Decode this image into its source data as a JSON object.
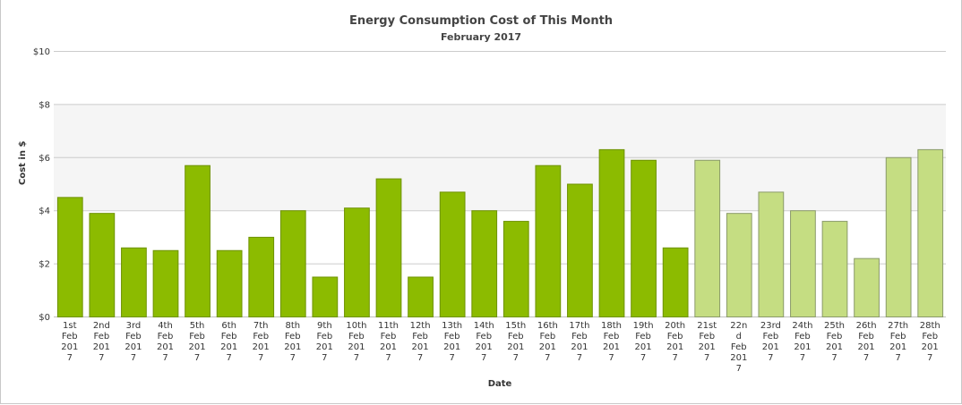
{
  "chart_data": {
    "type": "bar",
    "title": "Energy Consumption Cost of This Month",
    "subtitle": "February 2017",
    "xlabel": "Date",
    "ylabel": "Cost in $",
    "ylim": [
      0,
      10
    ],
    "yticks": [
      "$0",
      "$2",
      "$4",
      "$6",
      "$8",
      "$10"
    ],
    "band": {
      "from": 4,
      "to": 8,
      "color": "#f5f5f5"
    },
    "grid": true,
    "categories": [
      [
        "1st",
        "Feb",
        "201",
        "7"
      ],
      [
        "2nd",
        "Feb",
        "201",
        "7"
      ],
      [
        "3rd",
        "Feb",
        "201",
        "7"
      ],
      [
        "4th",
        "Feb",
        "201",
        "7"
      ],
      [
        "5th",
        "Feb",
        "201",
        "7"
      ],
      [
        "6th",
        "Feb",
        "201",
        "7"
      ],
      [
        "7th",
        "Feb",
        "201",
        "7"
      ],
      [
        "8th",
        "Feb",
        "201",
        "7"
      ],
      [
        "9th",
        "Feb",
        "201",
        "7"
      ],
      [
        "10th",
        "Feb",
        "201",
        "7"
      ],
      [
        "11th",
        "Feb",
        "201",
        "7"
      ],
      [
        "12th",
        "Feb",
        "201",
        "7"
      ],
      [
        "13th",
        "Feb",
        "201",
        "7"
      ],
      [
        "14th",
        "Feb",
        "201",
        "7"
      ],
      [
        "15th",
        "Feb",
        "201",
        "7"
      ],
      [
        "16th",
        "Feb",
        "201",
        "7"
      ],
      [
        "17th",
        "Feb",
        "201",
        "7"
      ],
      [
        "18th",
        "Feb",
        "201",
        "7"
      ],
      [
        "19th",
        "Feb",
        "201",
        "7"
      ],
      [
        "20th",
        "Feb",
        "201",
        "7"
      ],
      [
        "21st",
        "Feb",
        "201",
        "7"
      ],
      [
        "22n",
        "d",
        "Feb",
        "201",
        "7"
      ],
      [
        "23rd",
        "Feb",
        "201",
        "7"
      ],
      [
        "24th",
        "Feb",
        "201",
        "7"
      ],
      [
        "25th",
        "Feb",
        "201",
        "7"
      ],
      [
        "26th",
        "Feb",
        "201",
        "7"
      ],
      [
        "27th",
        "Feb",
        "201",
        "7"
      ],
      [
        "28th",
        "Feb",
        "201",
        "7"
      ]
    ],
    "values": [
      4.5,
      3.9,
      2.6,
      2.5,
      5.7,
      2.5,
      3.0,
      4.0,
      1.5,
      4.1,
      5.2,
      1.5,
      4.7,
      4.0,
      3.6,
      5.7,
      5.0,
      6.3,
      5.9,
      2.6,
      5.9,
      3.9,
      4.7,
      4.0,
      3.6,
      2.2,
      6.0,
      6.3
    ],
    "actual_count": 20,
    "colors": {
      "actual_fill": "#8cbb00",
      "actual_stroke": "#6e9200",
      "forecast_fill": "#c5dd82",
      "forecast_stroke": "#8a9a6a",
      "grid": "#cccccc",
      "axis": "#c0c0c0",
      "tick_text": "#333333"
    }
  }
}
